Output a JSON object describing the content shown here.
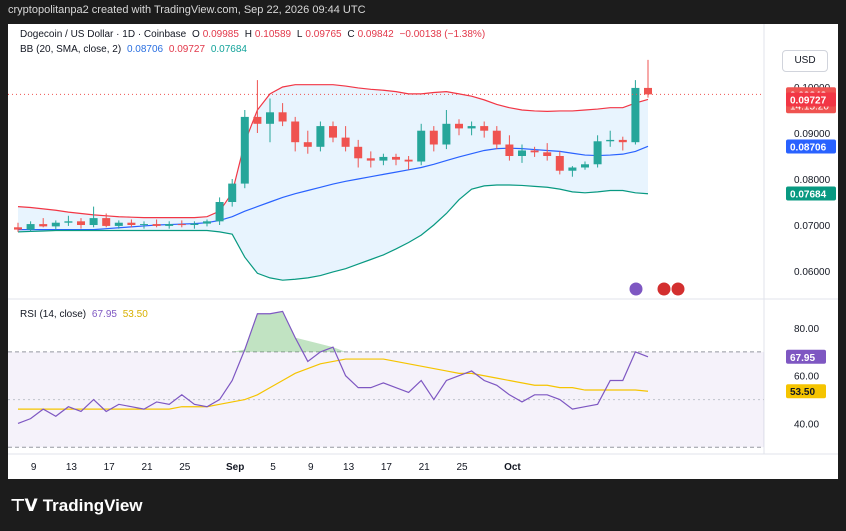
{
  "header": {
    "watermark": "cryptopolitanpa2 created with TradingView.com, Sep 22, 2026 09:44 UTC"
  },
  "legend": {
    "symbol": "Dogecoin / US Dollar · 1D · Coinbase",
    "o_label": "O",
    "o": "0.09985",
    "h_label": "H",
    "h": "0.10589",
    "l_label": "L",
    "l": "0.09765",
    "c_label": "C",
    "c": "0.09842",
    "change": "−0.00138 (−1.38%)",
    "bb_label": "BB (20, SMA, close, 2)",
    "bb_basis": "0.08706",
    "bb_upper": "0.09727",
    "bb_lower": "0.07684",
    "rsi_label": "RSI (14, close)",
    "rsi": "67.95",
    "rsi_ma": "53.50"
  },
  "currency_button": "USD",
  "colors": {
    "up": "#26a69a",
    "down": "#ef5350",
    "basis": "#2962ff",
    "upper": "#f23645",
    "lower": "#089981",
    "rsi": "#7e57c2",
    "rsi_ma": "#f5c400"
  },
  "price_labels": {
    "current": "0.09842",
    "countdown": "14:15:20",
    "upper": "0.09727",
    "basis": "0.08706",
    "lower": "0.07684"
  },
  "chart_data": [
    {
      "type": "candlestick",
      "title": "Dogecoin / US Dollar · 1D · Coinbase",
      "ylim": [
        0.055,
        0.105
      ],
      "yticks": [
        "0.10000",
        "0.09000",
        "0.08000",
        "0.07000",
        "0.06000"
      ],
      "xticks": [
        "9",
        "13",
        "17",
        "21",
        "25",
        "Sep",
        "5",
        "9",
        "13",
        "17",
        "21",
        "25",
        "Oct"
      ],
      "candles": [
        {
          "o": 0.0695,
          "h": 0.0705,
          "l": 0.0685,
          "c": 0.069
        },
        {
          "o": 0.069,
          "h": 0.0708,
          "l": 0.0686,
          "c": 0.0702
        },
        {
          "o": 0.0702,
          "h": 0.0715,
          "l": 0.0695,
          "c": 0.0697
        },
        {
          "o": 0.0697,
          "h": 0.071,
          "l": 0.069,
          "c": 0.0705
        },
        {
          "o": 0.0705,
          "h": 0.072,
          "l": 0.0698,
          "c": 0.0708
        },
        {
          "o": 0.0708,
          "h": 0.0715,
          "l": 0.0692,
          "c": 0.07
        },
        {
          "o": 0.07,
          "h": 0.074,
          "l": 0.0695,
          "c": 0.0715
        },
        {
          "o": 0.0715,
          "h": 0.0725,
          "l": 0.0695,
          "c": 0.0698
        },
        {
          "o": 0.0698,
          "h": 0.071,
          "l": 0.0692,
          "c": 0.0705
        },
        {
          "o": 0.0705,
          "h": 0.0712,
          "l": 0.0695,
          "c": 0.07
        },
        {
          "o": 0.07,
          "h": 0.0708,
          "l": 0.0692,
          "c": 0.0702
        },
        {
          "o": 0.0702,
          "h": 0.0712,
          "l": 0.0695,
          "c": 0.0698
        },
        {
          "o": 0.0698,
          "h": 0.0708,
          "l": 0.0692,
          "c": 0.0702
        },
        {
          "o": 0.0702,
          "h": 0.071,
          "l": 0.0695,
          "c": 0.07
        },
        {
          "o": 0.07,
          "h": 0.0708,
          "l": 0.0692,
          "c": 0.0703
        },
        {
          "o": 0.0703,
          "h": 0.0712,
          "l": 0.0697,
          "c": 0.0708
        },
        {
          "o": 0.0708,
          "h": 0.076,
          "l": 0.07,
          "c": 0.075
        },
        {
          "o": 0.075,
          "h": 0.08,
          "l": 0.074,
          "c": 0.079
        },
        {
          "o": 0.079,
          "h": 0.095,
          "l": 0.078,
          "c": 0.0935
        },
        {
          "o": 0.0935,
          "h": 0.1015,
          "l": 0.09,
          "c": 0.092
        },
        {
          "o": 0.092,
          "h": 0.0975,
          "l": 0.088,
          "c": 0.0945
        },
        {
          "o": 0.0945,
          "h": 0.0965,
          "l": 0.0915,
          "c": 0.0925
        },
        {
          "o": 0.0925,
          "h": 0.0935,
          "l": 0.086,
          "c": 0.088
        },
        {
          "o": 0.088,
          "h": 0.0905,
          "l": 0.0855,
          "c": 0.087
        },
        {
          "o": 0.087,
          "h": 0.0925,
          "l": 0.086,
          "c": 0.0915
        },
        {
          "o": 0.0915,
          "h": 0.0925,
          "l": 0.088,
          "c": 0.089
        },
        {
          "o": 0.089,
          "h": 0.0915,
          "l": 0.086,
          "c": 0.087
        },
        {
          "o": 0.087,
          "h": 0.0885,
          "l": 0.0825,
          "c": 0.0845
        },
        {
          "o": 0.0845,
          "h": 0.086,
          "l": 0.0825,
          "c": 0.084
        },
        {
          "o": 0.084,
          "h": 0.0855,
          "l": 0.083,
          "c": 0.0848
        },
        {
          "o": 0.0848,
          "h": 0.0855,
          "l": 0.083,
          "c": 0.0842
        },
        {
          "o": 0.0842,
          "h": 0.085,
          "l": 0.082,
          "c": 0.0838
        },
        {
          "o": 0.0838,
          "h": 0.092,
          "l": 0.083,
          "c": 0.0905
        },
        {
          "o": 0.0905,
          "h": 0.0915,
          "l": 0.086,
          "c": 0.0875
        },
        {
          "o": 0.0875,
          "h": 0.095,
          "l": 0.0865,
          "c": 0.092
        },
        {
          "o": 0.092,
          "h": 0.093,
          "l": 0.0895,
          "c": 0.091
        },
        {
          "o": 0.091,
          "h": 0.0925,
          "l": 0.0895,
          "c": 0.0915
        },
        {
          "o": 0.0915,
          "h": 0.0925,
          "l": 0.089,
          "c": 0.0905
        },
        {
          "o": 0.0905,
          "h": 0.0915,
          "l": 0.0865,
          "c": 0.0875
        },
        {
          "o": 0.0875,
          "h": 0.0895,
          "l": 0.084,
          "c": 0.085
        },
        {
          "o": 0.085,
          "h": 0.0875,
          "l": 0.0835,
          "c": 0.0862
        },
        {
          "o": 0.0862,
          "h": 0.087,
          "l": 0.0848,
          "c": 0.0858
        },
        {
          "o": 0.0858,
          "h": 0.0878,
          "l": 0.084,
          "c": 0.085
        },
        {
          "o": 0.085,
          "h": 0.086,
          "l": 0.081,
          "c": 0.0818
        },
        {
          "o": 0.0818,
          "h": 0.0828,
          "l": 0.0805,
          "c": 0.0825
        },
        {
          "o": 0.0825,
          "h": 0.0838,
          "l": 0.082,
          "c": 0.0832
        },
        {
          "o": 0.0832,
          "h": 0.0895,
          "l": 0.0825,
          "c": 0.0882
        },
        {
          "o": 0.0882,
          "h": 0.0905,
          "l": 0.087,
          "c": 0.0885
        },
        {
          "o": 0.0885,
          "h": 0.0892,
          "l": 0.0862,
          "c": 0.088
        },
        {
          "o": 0.088,
          "h": 0.1015,
          "l": 0.0875,
          "c": 0.0998
        },
        {
          "o": 0.0998,
          "h": 0.1059,
          "l": 0.0977,
          "c": 0.0984
        }
      ],
      "bb_upper": [
        0.074,
        0.0738,
        0.0735,
        0.0732,
        0.0728,
        0.0725,
        0.0722,
        0.072,
        0.0718,
        0.0717,
        0.0716,
        0.0716,
        0.0716,
        0.0716,
        0.0716,
        0.0718,
        0.073,
        0.077,
        0.088,
        0.095,
        0.0985,
        0.1,
        0.1005,
        0.1005,
        0.1005,
        0.1005,
        0.1002,
        0.0998,
        0.0995,
        0.0993,
        0.099,
        0.0985,
        0.0985,
        0.0988,
        0.099,
        0.0985,
        0.098,
        0.0972,
        0.0962,
        0.0955,
        0.095,
        0.0948,
        0.0947,
        0.0948,
        0.0948,
        0.095,
        0.0952,
        0.0955,
        0.0955,
        0.0965,
        0.0973
      ],
      "bb_basis": [
        0.069,
        0.069,
        0.069,
        0.069,
        0.069,
        0.069,
        0.069,
        0.0692,
        0.0694,
        0.0696,
        0.0698,
        0.07,
        0.0701,
        0.0702,
        0.0703,
        0.0705,
        0.071,
        0.0718,
        0.073,
        0.074,
        0.075,
        0.076,
        0.0768,
        0.0775,
        0.0782,
        0.0789,
        0.0795,
        0.08,
        0.0805,
        0.081,
        0.0815,
        0.082,
        0.0825,
        0.0832,
        0.084,
        0.0848,
        0.0855,
        0.0862,
        0.0866,
        0.0867,
        0.0866,
        0.0864,
        0.0862,
        0.086,
        0.0856,
        0.0852,
        0.0851,
        0.0852,
        0.0854,
        0.086,
        0.0871
      ],
      "bb_lower": [
        0.0685,
        0.0686,
        0.0687,
        0.0688,
        0.0688,
        0.0688,
        0.0688,
        0.0688,
        0.0688,
        0.0688,
        0.0688,
        0.0688,
        0.0688,
        0.0688,
        0.0688,
        0.0688,
        0.0685,
        0.068,
        0.063,
        0.0595,
        0.0585,
        0.058,
        0.0582,
        0.0585,
        0.059,
        0.0598,
        0.0605,
        0.0615,
        0.0625,
        0.0635,
        0.0648,
        0.0662,
        0.0678,
        0.07,
        0.0725,
        0.0755,
        0.0778,
        0.0785,
        0.0787,
        0.0787,
        0.0786,
        0.0784,
        0.0782,
        0.0778,
        0.0772,
        0.077,
        0.0772,
        0.0775,
        0.0775,
        0.077,
        0.0768
      ]
    },
    {
      "type": "line",
      "title": "RSI (14, close)",
      "ylim": [
        28,
        88
      ],
      "yticks": [
        "80.00",
        "60.00",
        "40.00"
      ],
      "bands": {
        "upper": 70,
        "lower": 30,
        "mid": 50
      },
      "series": [
        {
          "name": "RSI",
          "values": [
            40,
            42,
            46,
            43,
            47,
            45,
            50,
            45,
            48,
            47,
            46,
            49,
            48,
            52,
            48,
            47,
            50,
            58,
            71,
            86,
            86,
            87,
            76,
            66,
            70,
            72,
            60,
            55,
            55,
            57,
            55,
            53,
            58,
            50,
            58,
            60,
            62,
            58,
            56,
            52,
            49,
            52,
            52,
            50,
            46,
            47,
            48,
            58,
            58,
            70,
            67.95
          ]
        },
        {
          "name": "RSI-based MA",
          "values": [
            46,
            46,
            46,
            46,
            46,
            46,
            46,
            46,
            46,
            46,
            46,
            46,
            46,
            47,
            47,
            47,
            48,
            49,
            50,
            52,
            55,
            58,
            61,
            63,
            65,
            66,
            67,
            67,
            67,
            67,
            66,
            65,
            64,
            63,
            62,
            61,
            61,
            60,
            59,
            58,
            57,
            56,
            56,
            55,
            55,
            54,
            54,
            54,
            54,
            54,
            53.5
          ]
        }
      ]
    }
  ]
}
